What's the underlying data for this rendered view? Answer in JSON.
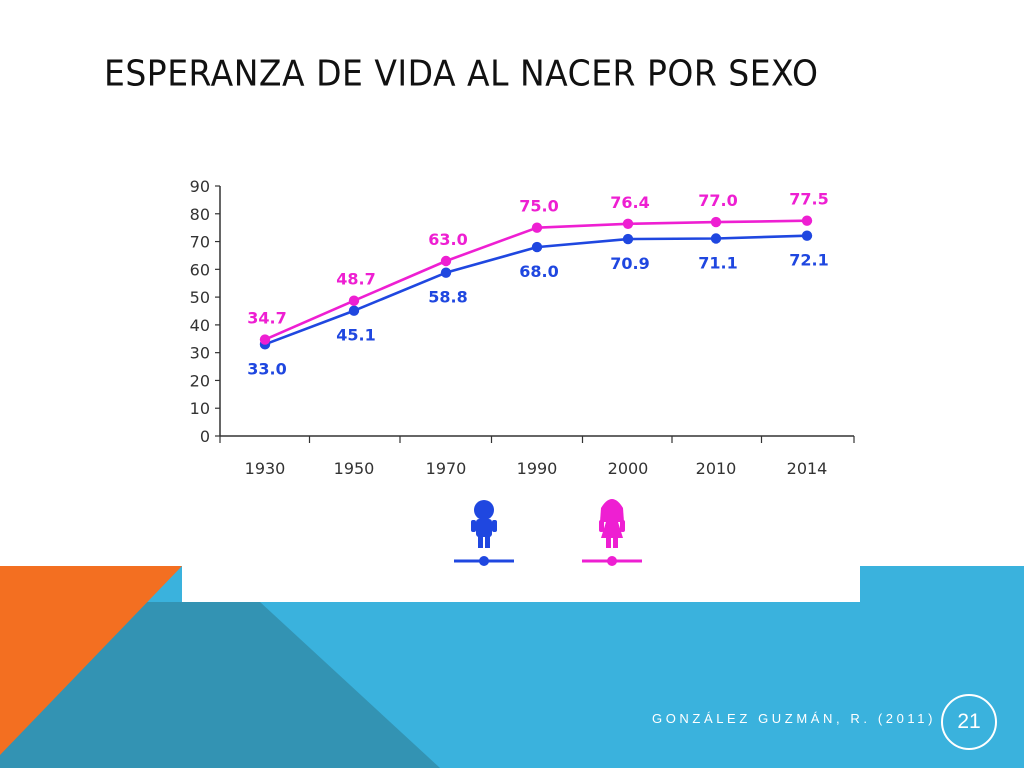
{
  "slide": {
    "title": "ESPERANZA DE VIDA AL NACER POR SEXO",
    "footer_credit": "GONZÁLEZ GUZMÁN, R. (2011)",
    "page_number": "21"
  },
  "colors": {
    "male": "#1f47e0",
    "female": "#ee1fd2",
    "orange": "#f36f21",
    "sky": "#3ab2dd",
    "teal": "#3393b3"
  },
  "chart_data": {
    "type": "line",
    "title": "",
    "xlabel": "",
    "ylabel": "",
    "categories": [
      "1930",
      "1950",
      "1970",
      "1990",
      "2000",
      "2010",
      "2014"
    ],
    "ylim": [
      0,
      90
    ],
    "yticks": [
      0,
      10,
      20,
      30,
      40,
      50,
      60,
      70,
      80,
      90
    ],
    "grid": false,
    "legend": "bottom-center, pictograms (boy, girl)",
    "series": [
      {
        "key": "male",
        "icon": "boy-icon",
        "color": "#1f47e0",
        "values": [
          33.0,
          45.1,
          58.8,
          68.0,
          70.9,
          71.1,
          72.1
        ],
        "labels": [
          "33.0",
          "45.1",
          "58.8",
          "68.0",
          "70.9",
          "71.1",
          "72.1"
        ]
      },
      {
        "key": "female",
        "icon": "girl-icon",
        "color": "#ee1fd2",
        "values": [
          34.7,
          48.7,
          63.0,
          75.0,
          76.4,
          77.0,
          77.5
        ],
        "labels": [
          "34.7",
          "48.7",
          "63.0",
          "75.0",
          "76.4",
          "77.0",
          "77.5"
        ]
      }
    ]
  }
}
